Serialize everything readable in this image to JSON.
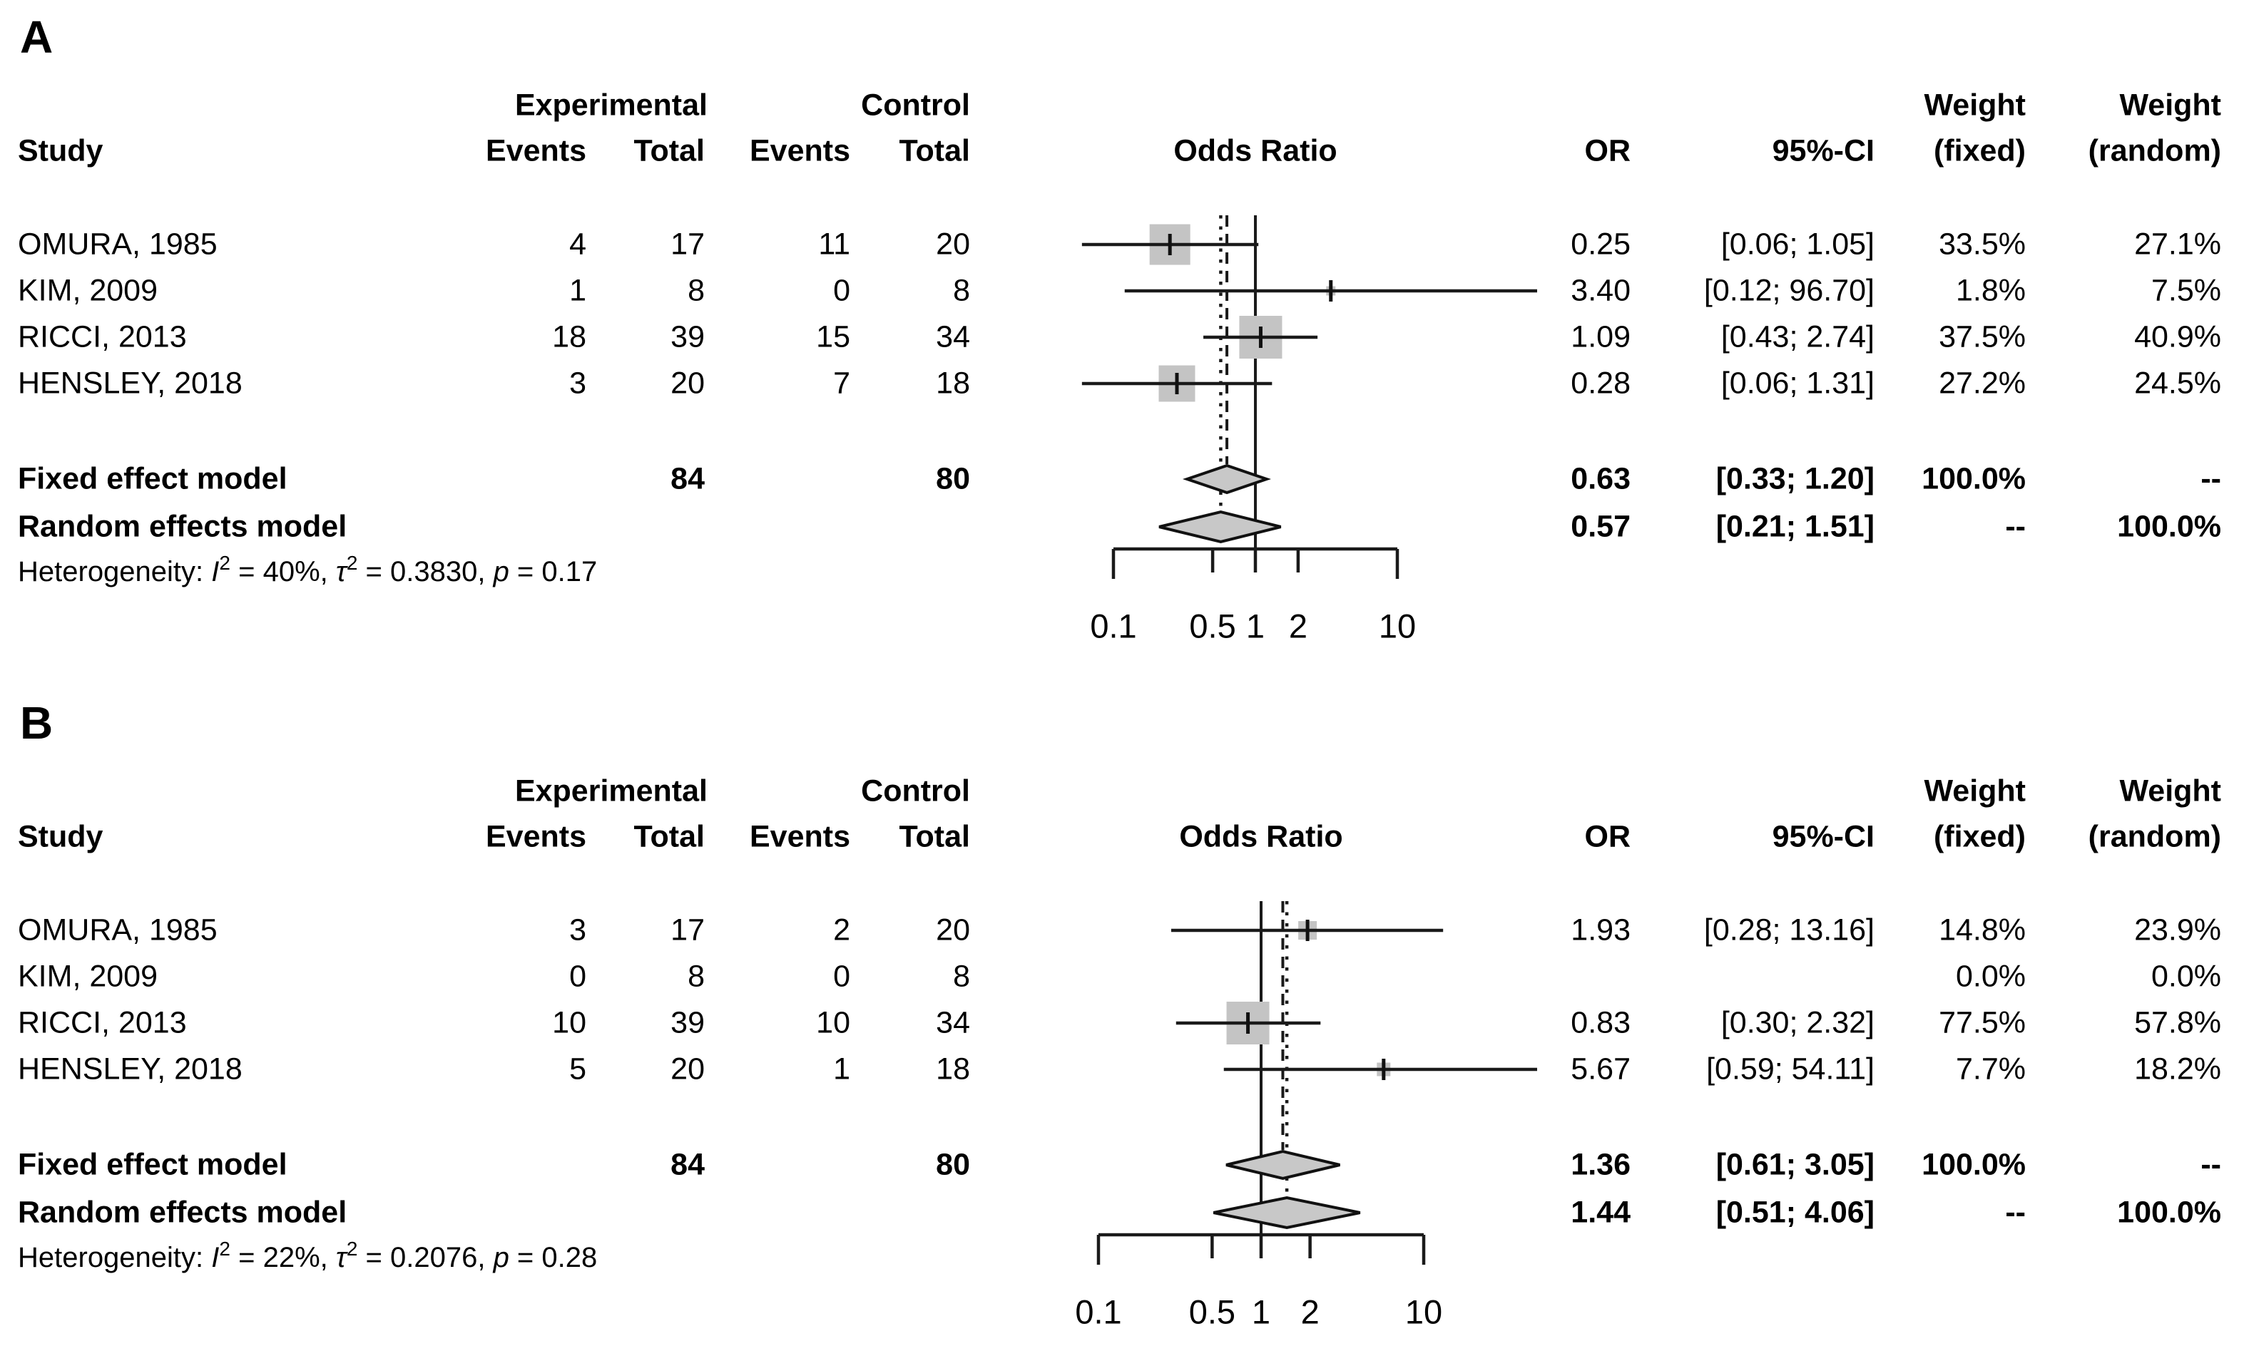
{
  "columns": {
    "study": "Study",
    "group_exp": "Experimental",
    "group_ctrl": "Control",
    "events": "Events",
    "total": "Total",
    "effect": "Odds Ratio",
    "or": "OR",
    "ci": "95%-CI",
    "weight": "Weight",
    "fixed": "(fixed)",
    "random": "(random)"
  },
  "colors": {
    "marker_square": "#c4c4c4",
    "diamond_fill": "#c8c8c8",
    "line": "#1a1a1a"
  },
  "chart_data": [
    {
      "type": "forest",
      "panel": "A",
      "effect_measure": "Odds Ratio",
      "x_axis": {
        "scale": "log10",
        "tick_values": [
          0.1,
          0.5,
          1,
          2,
          10
        ],
        "tick_labels": [
          "0.1",
          "0.5",
          "1",
          "2",
          "10"
        ]
      },
      "studies": [
        {
          "study": "OMURA, 1985",
          "exp_events": "4",
          "exp_total": "17",
          "ctrl_events": "11",
          "ctrl_total": "20",
          "or_text": "0.25",
          "ci_text": "[0.06; 1.05]",
          "weight_fixed": "33.5%",
          "weight_random": "27.1%",
          "or": 0.25,
          "ci_low": 0.06,
          "ci_high": 1.05,
          "weight_fixed_value": 33.5
        },
        {
          "study": "KIM, 2009",
          "exp_events": "1",
          "exp_total": "8",
          "ctrl_events": "0",
          "ctrl_total": "8",
          "or_text": "3.40",
          "ci_text": "[0.12; 96.70]",
          "weight_fixed": "1.8%",
          "weight_random": "7.5%",
          "or": 3.4,
          "ci_low": 0.12,
          "ci_high": 96.7,
          "weight_fixed_value": 1.8
        },
        {
          "study": "RICCI, 2013",
          "exp_events": "18",
          "exp_total": "39",
          "ctrl_events": "15",
          "ctrl_total": "34",
          "or_text": "1.09",
          "ci_text": "[0.43; 2.74]",
          "weight_fixed": "37.5%",
          "weight_random": "40.9%",
          "or": 1.09,
          "ci_low": 0.43,
          "ci_high": 2.74,
          "weight_fixed_value": 37.5
        },
        {
          "study": "HENSLEY, 2018",
          "exp_events": "3",
          "exp_total": "20",
          "ctrl_events": "7",
          "ctrl_total": "18",
          "or_text": "0.28",
          "ci_text": "[0.06; 1.31]",
          "weight_fixed": "27.2%",
          "weight_random": "24.5%",
          "or": 0.28,
          "ci_low": 0.06,
          "ci_high": 1.31,
          "weight_fixed_value": 27.2
        }
      ],
      "fixed": {
        "label": "Fixed effect model",
        "exp_total": "84",
        "ctrl_total": "80",
        "or_text": "0.63",
        "ci_text": "[0.33; 1.20]",
        "weight_fixed": "100.0%",
        "weight_random": "--",
        "or": 0.63,
        "ci_low": 0.33,
        "ci_high": 1.2
      },
      "random": {
        "label": "Random effects model",
        "or_text": "0.57",
        "ci_text": "[0.21; 1.51]",
        "weight_fixed": "--",
        "weight_random": "100.0%",
        "or": 0.57,
        "ci_low": 0.21,
        "ci_high": 1.51
      },
      "heterogeneity": [
        {
          "text": "Heterogeneity: ",
          "style": "plain"
        },
        {
          "text": "I",
          "style": "italic"
        },
        {
          "text": "2",
          "style": "sup"
        },
        {
          "text": " = 40%, ",
          "style": "plain"
        },
        {
          "text": "τ",
          "style": "italic"
        },
        {
          "text": "2",
          "style": "sup"
        },
        {
          "text": " = 0.3830, ",
          "style": "plain"
        },
        {
          "text": "p",
          "style": "italic"
        },
        {
          "text": " = 0.17",
          "style": "plain"
        }
      ]
    },
    {
      "type": "forest",
      "panel": "B",
      "effect_measure": "Odds Ratio",
      "x_axis": {
        "scale": "log10",
        "tick_values": [
          0.1,
          0.5,
          1,
          2,
          10
        ],
        "tick_labels": [
          "0.1",
          "0.5",
          "1",
          "2",
          "10"
        ]
      },
      "studies": [
        {
          "study": "OMURA, 1985",
          "exp_events": "3",
          "exp_total": "17",
          "ctrl_events": "2",
          "ctrl_total": "20",
          "or_text": "1.93",
          "ci_text": "[0.28; 13.16]",
          "weight_fixed": "14.8%",
          "weight_random": "23.9%",
          "or": 1.93,
          "ci_low": 0.28,
          "ci_high": 13.16,
          "weight_fixed_value": 14.8
        },
        {
          "study": "KIM, 2009",
          "exp_events": "0",
          "exp_total": "8",
          "ctrl_events": "0",
          "ctrl_total": "8",
          "or_text": "",
          "ci_text": "",
          "weight_fixed": "0.0%",
          "weight_random": "0.0%",
          "or": null,
          "ci_low": null,
          "ci_high": null,
          "weight_fixed_value": 0
        },
        {
          "study": "RICCI, 2013",
          "exp_events": "10",
          "exp_total": "39",
          "ctrl_events": "10",
          "ctrl_total": "34",
          "or_text": "0.83",
          "ci_text": "[0.30; 2.32]",
          "weight_fixed": "77.5%",
          "weight_random": "57.8%",
          "or": 0.83,
          "ci_low": 0.3,
          "ci_high": 2.32,
          "weight_fixed_value": 77.5
        },
        {
          "study": "HENSLEY, 2018",
          "exp_events": "5",
          "exp_total": "20",
          "ctrl_events": "1",
          "ctrl_total": "18",
          "or_text": "5.67",
          "ci_text": "[0.59; 54.11]",
          "weight_fixed": "7.7%",
          "weight_random": "18.2%",
          "or": 5.67,
          "ci_low": 0.59,
          "ci_high": 54.11,
          "weight_fixed_value": 7.7
        }
      ],
      "fixed": {
        "label": "Fixed effect model",
        "exp_total": "84",
        "ctrl_total": "80",
        "or_text": "1.36",
        "ci_text": "[0.61; 3.05]",
        "weight_fixed": "100.0%",
        "weight_random": "--",
        "or": 1.36,
        "ci_low": 0.61,
        "ci_high": 3.05
      },
      "random": {
        "label": "Random effects model",
        "or_text": "1.44",
        "ci_text": "[0.51; 4.06]",
        "weight_fixed": "--",
        "weight_random": "100.0%",
        "or": 1.44,
        "ci_low": 0.51,
        "ci_high": 4.06
      },
      "heterogeneity": [
        {
          "text": "Heterogeneity: ",
          "style": "plain"
        },
        {
          "text": "I",
          "style": "italic"
        },
        {
          "text": "2",
          "style": "sup"
        },
        {
          "text": " = 22%, ",
          "style": "plain"
        },
        {
          "text": "τ",
          "style": "italic"
        },
        {
          "text": "2",
          "style": "sup"
        },
        {
          "text": " = 0.2076, ",
          "style": "plain"
        },
        {
          "text": "p",
          "style": "italic"
        },
        {
          "text": " = 0.28",
          "style": "plain"
        }
      ]
    }
  ]
}
